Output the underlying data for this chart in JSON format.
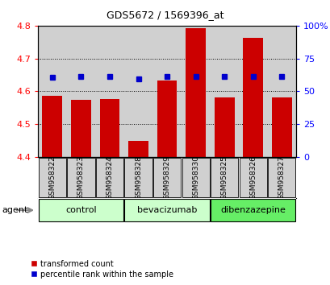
{
  "title": "GDS5672 / 1569396_at",
  "samples": [
    "GSM958322",
    "GSM958323",
    "GSM958324",
    "GSM958328",
    "GSM958329",
    "GSM958330",
    "GSM958325",
    "GSM958326",
    "GSM958327"
  ],
  "bar_values": [
    4.585,
    4.573,
    4.575,
    4.448,
    4.633,
    4.793,
    4.582,
    4.762,
    4.582
  ],
  "dot_values": [
    4.643,
    4.645,
    4.644,
    4.638,
    4.646,
    4.645,
    4.644,
    4.645,
    4.644
  ],
  "bar_bottom": 4.4,
  "ylim": [
    4.4,
    4.8
  ],
  "y2lim": [
    0,
    100
  ],
  "yticks": [
    4.4,
    4.5,
    4.6,
    4.7,
    4.8
  ],
  "y2ticks": [
    0,
    25,
    50,
    75,
    100
  ],
  "bar_color": "#cc0000",
  "dot_color": "#0000cc",
  "group_boundaries": [
    {
      "start": 0,
      "end": 2,
      "label": "control",
      "color": "#ccffcc"
    },
    {
      "start": 3,
      "end": 5,
      "label": "bevacizumab",
      "color": "#ccffcc"
    },
    {
      "start": 6,
      "end": 8,
      "label": "dibenzazepine",
      "color": "#66ee66"
    }
  ],
  "legend_bar": "transformed count",
  "legend_dot": "percentile rank within the sample",
  "bar_width": 0.7,
  "col_bg": "#d0d0d0",
  "plot_bg": "#ffffff"
}
